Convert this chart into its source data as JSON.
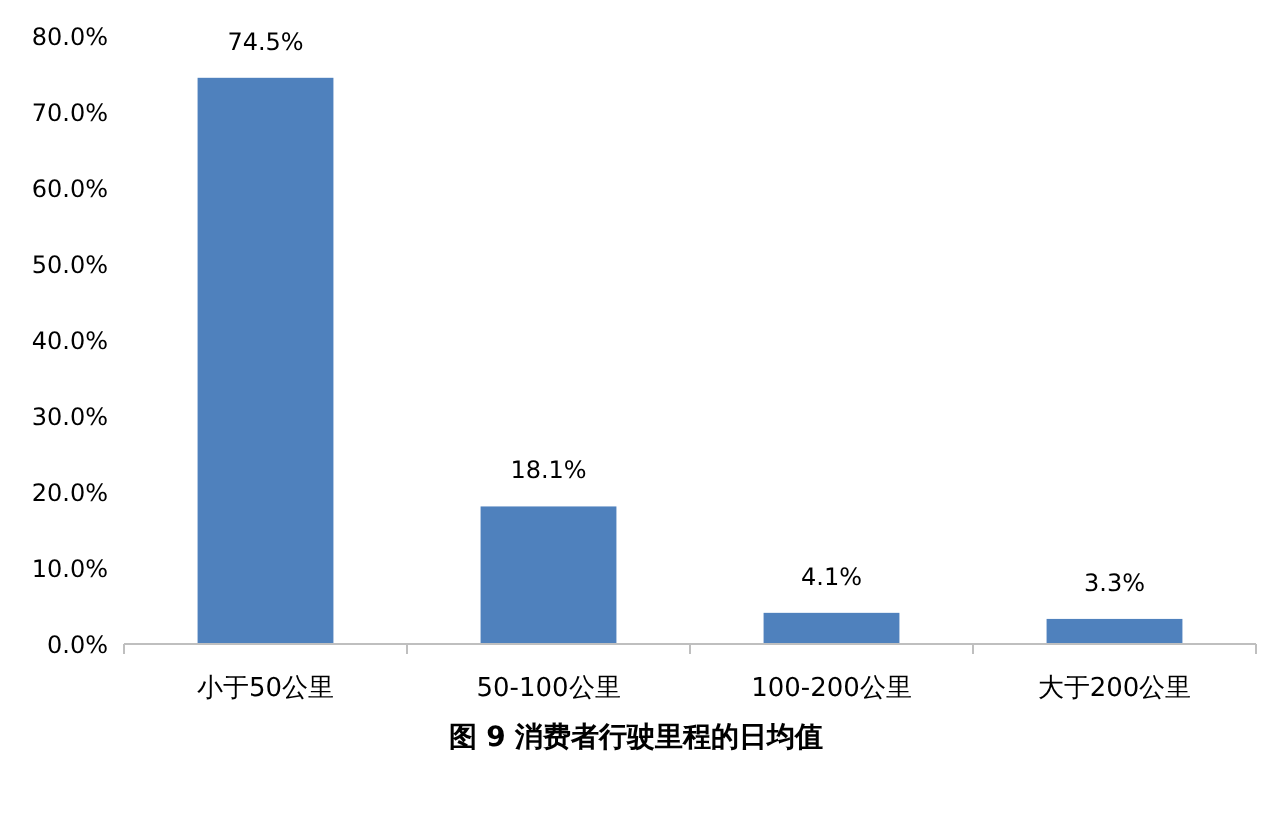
{
  "chart_data": {
    "type": "bar",
    "title": "图 9 消费者行驶里程的日均值",
    "categories": [
      "小于50公里",
      "50-100公里",
      "100-200公里",
      "大于200公里"
    ],
    "values": [
      74.5,
      18.1,
      4.1,
      3.3
    ],
    "value_labels": [
      "74.5%",
      "18.1%",
      "4.1%",
      "3.3%"
    ],
    "color": "#4f81bd",
    "ylim": [
      0,
      80
    ],
    "yticks": [
      {
        "value": 0,
        "label": "0.0%"
      },
      {
        "value": 10,
        "label": "10.0%"
      },
      {
        "value": 20,
        "label": "20.0%"
      },
      {
        "value": 30,
        "label": "30.0%"
      },
      {
        "value": 40,
        "label": "40.0%"
      },
      {
        "value": 50,
        "label": "50.0%"
      },
      {
        "value": 60,
        "label": "60.0%"
      },
      {
        "value": 70,
        "label": "70.0%"
      },
      {
        "value": 80,
        "label": "80.0%"
      }
    ],
    "grid": false
  }
}
